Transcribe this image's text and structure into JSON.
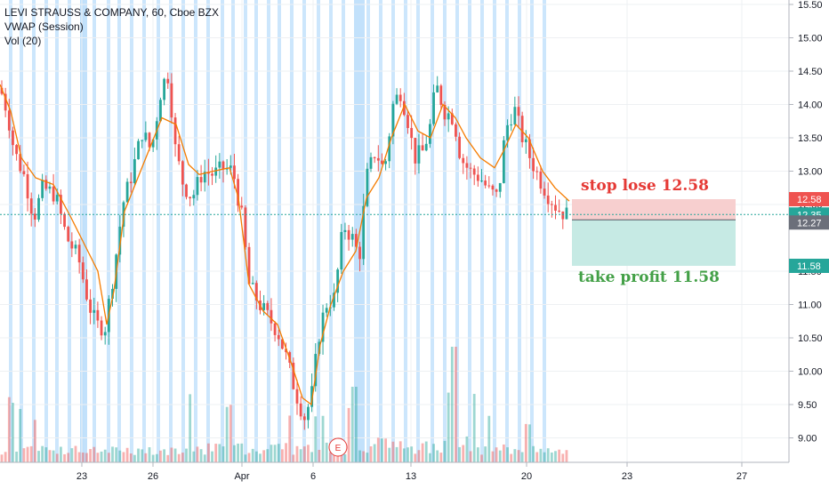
{
  "legend": {
    "symbol": "LEVI STRAUSS & COMPANY, 60, Cboe BZX",
    "vwap": "VWAP (Session)",
    "vol": "Vol (20)"
  },
  "colors": {
    "up": "#26a69a",
    "down": "#ef5350",
    "vwap": "#f57c00",
    "session_band": "#bbdefb",
    "stop_zone": "#f7cfcf",
    "profit_zone": "#c6eae4",
    "current_line": "#26a69a"
  },
  "annotations": {
    "stop_label": "stop lose 12.58",
    "profit_label": "take profit 11.58",
    "earnings_marker": "E"
  },
  "price_tags": [
    {
      "label": "12.58",
      "value": 12.58,
      "color": "#ef5350"
    },
    {
      "label": "12.35",
      "value": 12.35,
      "color": "#26a69a"
    },
    {
      "label": "12.27",
      "value": 12.27,
      "color": "#6b6f7a"
    },
    {
      "label": "11.58",
      "value": 11.58,
      "color": "#26a69a"
    }
  ],
  "chart_data": {
    "type": "candlestick",
    "y_ticks": [
      "15.50",
      "15.00",
      "14.50",
      "14.00",
      "13.50",
      "13.00",
      "12.50",
      "11.50",
      "11.00",
      "10.50",
      "10.00",
      "9.50",
      "9.00"
    ],
    "x_ticks": [
      "23",
      "26",
      "Apr",
      "6",
      "13",
      "20",
      "23",
      "27"
    ],
    "ylim": [
      8.7,
      15.5
    ],
    "current_price": 12.35,
    "stop_loss": 12.58,
    "take_profit": 11.58,
    "entry": 12.27,
    "close_path": [
      [
        0,
        14.25
      ],
      [
        8,
        13.9
      ],
      [
        16,
        13.3
      ],
      [
        28,
        12.9
      ],
      [
        38,
        12.3
      ],
      [
        48,
        12.75
      ],
      [
        62,
        12.65
      ],
      [
        75,
        12.0
      ],
      [
        88,
        11.7
      ],
      [
        100,
        11.0
      ],
      [
        108,
        10.7
      ],
      [
        118,
        10.65
      ],
      [
        128,
        11.5
      ],
      [
        138,
        12.5
      ],
      [
        148,
        12.95
      ],
      [
        160,
        13.6
      ],
      [
        170,
        13.3
      ],
      [
        182,
        14.3
      ],
      [
        190,
        14.45
      ],
      [
        196,
        13.4
      ],
      [
        206,
        12.8
      ],
      [
        216,
        12.6
      ],
      [
        228,
        13.0
      ],
      [
        240,
        12.95
      ],
      [
        252,
        13.05
      ],
      [
        262,
        13.0
      ],
      [
        272,
        12.3
      ],
      [
        280,
        11.3
      ],
      [
        292,
        11.0
      ],
      [
        302,
        10.8
      ],
      [
        312,
        10.6
      ],
      [
        322,
        10.2
      ],
      [
        332,
        9.7
      ],
      [
        342,
        9.3
      ],
      [
        350,
        9.6
      ],
      [
        358,
        10.5
      ],
      [
        366,
        11.0
      ],
      [
        376,
        11.1
      ],
      [
        386,
        12.2
      ],
      [
        396,
        12.0
      ],
      [
        404,
        11.7
      ],
      [
        412,
        12.9
      ],
      [
        422,
        13.3
      ],
      [
        432,
        13.0
      ],
      [
        442,
        14.0
      ],
      [
        450,
        14.2
      ],
      [
        458,
        13.8
      ],
      [
        466,
        13.2
      ],
      [
        476,
        13.3
      ],
      [
        484,
        13.7
      ],
      [
        490,
        14.3
      ],
      [
        500,
        13.9
      ],
      [
        510,
        13.8
      ],
      [
        518,
        13.2
      ],
      [
        528,
        13.0
      ],
      [
        540,
        12.9
      ],
      [
        550,
        12.7
      ],
      [
        560,
        12.6
      ],
      [
        568,
        13.6
      ],
      [
        578,
        13.95
      ],
      [
        586,
        13.55
      ],
      [
        596,
        13.2
      ],
      [
        606,
        12.9
      ],
      [
        616,
        12.65
      ],
      [
        626,
        12.45
      ],
      [
        636,
        12.35
      ]
    ],
    "vwap_path": [
      [
        0,
        14.3
      ],
      [
        12,
        13.9
      ],
      [
        24,
        13.2
      ],
      [
        40,
        12.9
      ],
      [
        60,
        12.8
      ],
      [
        80,
        12.3
      ],
      [
        95,
        11.9
      ],
      [
        110,
        11.5
      ],
      [
        120,
        10.7
      ],
      [
        128,
        11.2
      ],
      [
        140,
        12.4
      ],
      [
        155,
        12.9
      ],
      [
        170,
        13.4
      ],
      [
        182,
        13.8
      ],
      [
        198,
        13.7
      ],
      [
        212,
        13.1
      ],
      [
        224,
        12.95
      ],
      [
        240,
        13.0
      ],
      [
        258,
        13.05
      ],
      [
        268,
        12.6
      ],
      [
        280,
        11.3
      ],
      [
        296,
        10.9
      ],
      [
        312,
        10.7
      ],
      [
        328,
        10.1
      ],
      [
        340,
        9.6
      ],
      [
        350,
        9.5
      ],
      [
        360,
        10.4
      ],
      [
        372,
        11.0
      ],
      [
        386,
        11.5
      ],
      [
        400,
        11.8
      ],
      [
        412,
        12.6
      ],
      [
        426,
        12.9
      ],
      [
        440,
        13.5
      ],
      [
        455,
        14.0
      ],
      [
        470,
        13.6
      ],
      [
        484,
        13.5
      ],
      [
        498,
        14.0
      ],
      [
        512,
        13.8
      ],
      [
        524,
        13.5
      ],
      [
        540,
        13.2
      ],
      [
        556,
        13.05
      ],
      [
        566,
        13.3
      ],
      [
        580,
        13.7
      ],
      [
        594,
        13.5
      ],
      [
        610,
        13.0
      ],
      [
        624,
        12.75
      ],
      [
        640,
        12.55
      ]
    ],
    "volume_profile": [
      [
        0,
        0.5
      ],
      [
        60,
        0.35
      ],
      [
        100,
        0.4
      ],
      [
        160,
        0.35
      ],
      [
        200,
        0.3
      ],
      [
        260,
        0.7
      ],
      [
        300,
        0.5
      ],
      [
        340,
        0.45
      ],
      [
        380,
        0.55
      ],
      [
        400,
        0.8
      ],
      [
        430,
        0.7
      ],
      [
        460,
        0.5
      ],
      [
        490,
        0.55
      ],
      [
        510,
        1.0
      ],
      [
        540,
        0.45
      ],
      [
        580,
        0.4
      ],
      [
        640,
        0.35
      ]
    ]
  }
}
